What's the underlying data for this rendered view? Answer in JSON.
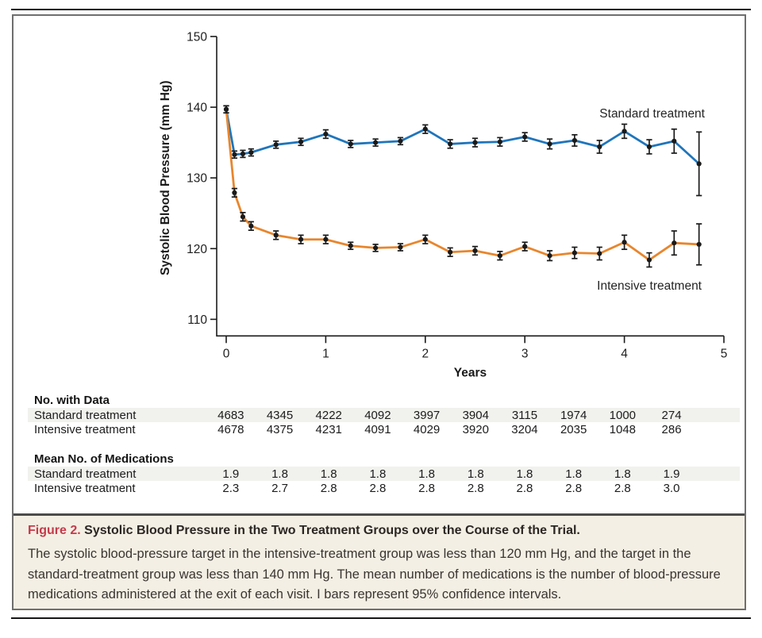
{
  "figure": {
    "label": "Figure 2.",
    "title": "Systolic Blood Pressure in the Two Treatment Groups over the Course of the Trial.",
    "caption": "The systolic blood-pressure target in the intensive-treatment group was less than 120 mm Hg, and the target in the standard-treatment group was less than 140 mm Hg. The mean number of medications is the number of blood-pressure medications administered at the exit of each visit. I bars represent 95% confidence intervals.",
    "label_color": "#c53a4b"
  },
  "chart_data": {
    "type": "line",
    "xlabel": "Years",
    "ylabel": "Systolic Blood Pressure (mm Hg)",
    "xlim": [
      0,
      5
    ],
    "ylim": [
      107.5,
      150
    ],
    "xticks": [
      0,
      1,
      2,
      3,
      4,
      5
    ],
    "yticks": [
      110,
      120,
      130,
      140,
      150
    ],
    "grid": false,
    "legend_position": "inline-labels",
    "error_bars": "95% CI",
    "x": [
      0,
      0.083,
      0.167,
      0.25,
      0.5,
      0.75,
      1,
      1.25,
      1.5,
      1.75,
      2,
      2.25,
      2.5,
      2.75,
      3,
      3.25,
      3.5,
      3.75,
      4,
      4.25,
      4.5,
      4.75
    ],
    "series": [
      {
        "name": "Standard treatment",
        "color": "#1f75bb",
        "values": [
          139.7,
          133.3,
          133.4,
          133.6,
          134.7,
          135.1,
          136.2,
          134.8,
          135.0,
          135.2,
          136.9,
          134.8,
          135.0,
          135.1,
          135.8,
          134.8,
          135.3,
          134.4,
          136.6,
          134.4,
          135.2,
          132.0
        ],
        "ci": [
          0.5,
          0.5,
          0.5,
          0.5,
          0.5,
          0.5,
          0.6,
          0.5,
          0.5,
          0.5,
          0.6,
          0.6,
          0.6,
          0.6,
          0.6,
          0.7,
          0.8,
          0.9,
          1.0,
          1.0,
          1.7,
          4.5
        ]
      },
      {
        "name": "Intensive treatment",
        "color": "#e8862d",
        "values": [
          139.7,
          127.9,
          124.5,
          123.2,
          121.9,
          121.3,
          121.3,
          120.4,
          120.1,
          120.2,
          121.3,
          119.5,
          119.7,
          119.0,
          120.3,
          119.0,
          119.4,
          119.3,
          120.9,
          118.4,
          120.8,
          120.6
        ],
        "ci": [
          0.5,
          0.6,
          0.6,
          0.6,
          0.6,
          0.6,
          0.6,
          0.5,
          0.5,
          0.5,
          0.6,
          0.6,
          0.6,
          0.6,
          0.6,
          0.7,
          0.8,
          0.9,
          1.0,
          1.0,
          1.7,
          2.9
        ]
      }
    ],
    "marker_color": "#1a1a1a"
  },
  "tables": [
    {
      "heading": "No. with Data",
      "rows": [
        {
          "label": "Standard treatment",
          "striped": true,
          "values": [
            "4683",
            "4345",
            "4222",
            "4092",
            "3997",
            "3904",
            "3115",
            "1974",
            "1000",
            "274"
          ]
        },
        {
          "label": "Intensive treatment",
          "striped": false,
          "values": [
            "4678",
            "4375",
            "4231",
            "4091",
            "4029",
            "3920",
            "3204",
            "2035",
            "1048",
            "286"
          ]
        }
      ]
    },
    {
      "heading": "Mean No. of Medications",
      "rows": [
        {
          "label": "Standard treatment",
          "striped": true,
          "values": [
            "1.9",
            "1.8",
            "1.8",
            "1.8",
            "1.8",
            "1.8",
            "1.8",
            "1.8",
            "1.8",
            "1.9"
          ]
        },
        {
          "label": "Intensive treatment",
          "striped": false,
          "values": [
            "2.3",
            "2.7",
            "2.8",
            "2.8",
            "2.8",
            "2.8",
            "2.8",
            "2.8",
            "2.8",
            "3.0"
          ]
        }
      ]
    }
  ]
}
